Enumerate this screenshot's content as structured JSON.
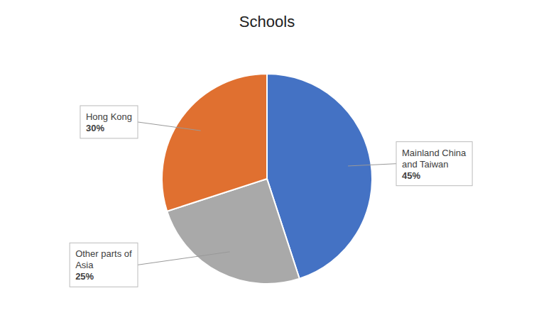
{
  "chart_data": {
    "type": "pie",
    "title": "Schools",
    "categories": [
      "Mainland China\nand Taiwan",
      "Other parts of\nAsia",
      "Hong Kong"
    ],
    "values": [
      45,
      25,
      30
    ],
    "value_labels": [
      "45%",
      "25%",
      "30%"
    ],
    "colors": [
      "#4472C4",
      "#A9A9A9",
      "#E07030"
    ]
  }
}
